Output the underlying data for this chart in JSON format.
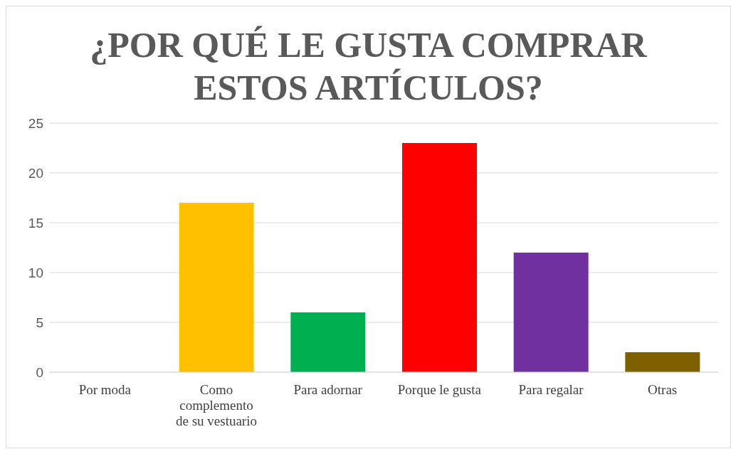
{
  "chart_data": {
    "type": "bar",
    "title": "¿POR QUÉ LE GUSTA COMPRAR ESTOS ARTÍCULOS?",
    "categories": [
      "Por moda",
      "Como complemento de su vestuario",
      "Para adornar",
      "Porque le gusta",
      "Para regalar",
      "Otras"
    ],
    "values": [
      0,
      17,
      6,
      23,
      12,
      2
    ],
    "colors": [
      "#4472c4",
      "#ffc000",
      "#00b050",
      "#ff0000",
      "#7030a0",
      "#7f6000"
    ],
    "ylim": [
      0,
      25
    ],
    "yticks": [
      0,
      5,
      10,
      15,
      20,
      25
    ],
    "grid": "y",
    "legend": false
  }
}
